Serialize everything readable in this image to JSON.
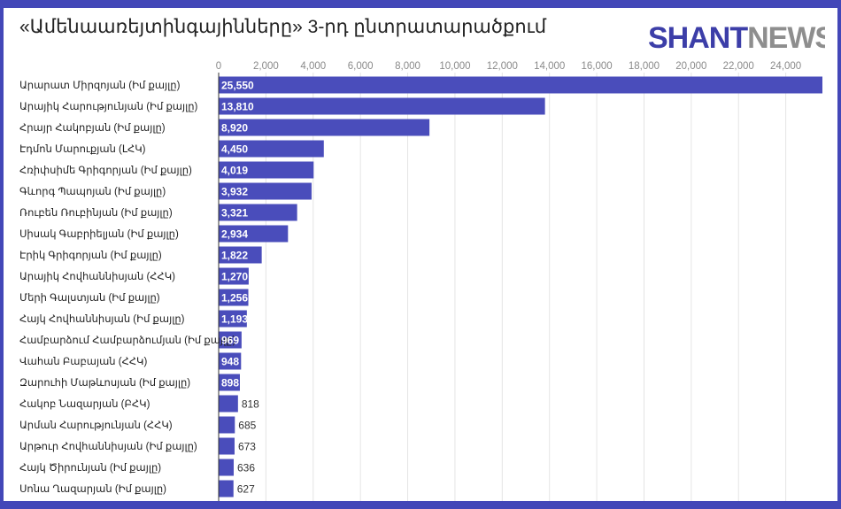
{
  "title": "«Ամենաառեյտինգայինները» 3-րդ ընտրատարածքում",
  "logo": {
    "part1": "SHANT",
    "part2": "NEWS"
  },
  "colors": {
    "bar": "#4a4dbb",
    "frame": "#4347b8",
    "grid": "#e4e4e4",
    "axis": "#333333"
  },
  "chart_data": {
    "type": "bar",
    "orientation": "horizontal",
    "categories": [
      "Արարատ Միրզոյան (Իմ քայլը)",
      "Արայիկ Հարությունյան (Իմ քայլը)",
      "Հրայր Հակոբյան (Իմ քայլը)",
      "Էդմոն Մարուքյան (ԼՀԿ)",
      "Հռիփսիմե Գրիգորյան (Իմ քայլը)",
      "Գևորգ Պապոյան (Իմ քայլը)",
      "Ռուբեն Ռուբինյան (Իմ քայլը)",
      "Սիսակ Գաբրիելյան (Իմ քայլը)",
      "Էրիկ Գրիգորյան (Իմ քայլը)",
      "Արայիկ Հովհաննիսյան (ՀՀԿ)",
      "Մերի Գալստյան (Իմ քայլը)",
      "Հայկ Հովհաննիսյան (Իմ քայլը)",
      "Համբարձում Համբարձումյան (Իմ քայլը)",
      "Վահան Բաբայան (ՀՀԿ)",
      "Զարուհի Մաթևոսյան (Իմ քայլը)",
      "Հակոբ Նազարյան (ԲՀԿ)",
      "Արման Հարությունյան (ՀՀԿ)",
      "Արթուր Հովհաննիսյան (Իմ քայլը)",
      "Հայկ Ծիրունյան (Իմ քայլը)",
      "Սոնա Ղազարյան (Իմ քայլը)"
    ],
    "values": [
      25550,
      13810,
      8920,
      4450,
      4019,
      3932,
      3321,
      2934,
      1822,
      1270,
      1256,
      1193,
      969,
      948,
      898,
      818,
      685,
      673,
      636,
      627
    ],
    "value_labels": [
      "25,550",
      "13,810",
      "8,920",
      "4,450",
      "4,019",
      "3,932",
      "3,321",
      "2,934",
      "1,822",
      "1,270",
      "1,256",
      "1,193",
      "969",
      "948",
      "898",
      "818",
      "685",
      "673",
      "636",
      "627"
    ],
    "xticks": [
      0,
      2000,
      4000,
      6000,
      8000,
      10000,
      12000,
      14000,
      16000,
      18000,
      20000,
      22000,
      24000
    ],
    "xtick_labels": [
      "0",
      "2,000",
      "4,000",
      "6,000",
      "8,000",
      "10,000",
      "12,000",
      "14,000",
      "16,000",
      "18,000",
      "20,000",
      "22,000",
      "24,000"
    ],
    "xlim": [
      0,
      25550
    ],
    "xaxis_position": "top",
    "grid": true,
    "legend": "none"
  }
}
